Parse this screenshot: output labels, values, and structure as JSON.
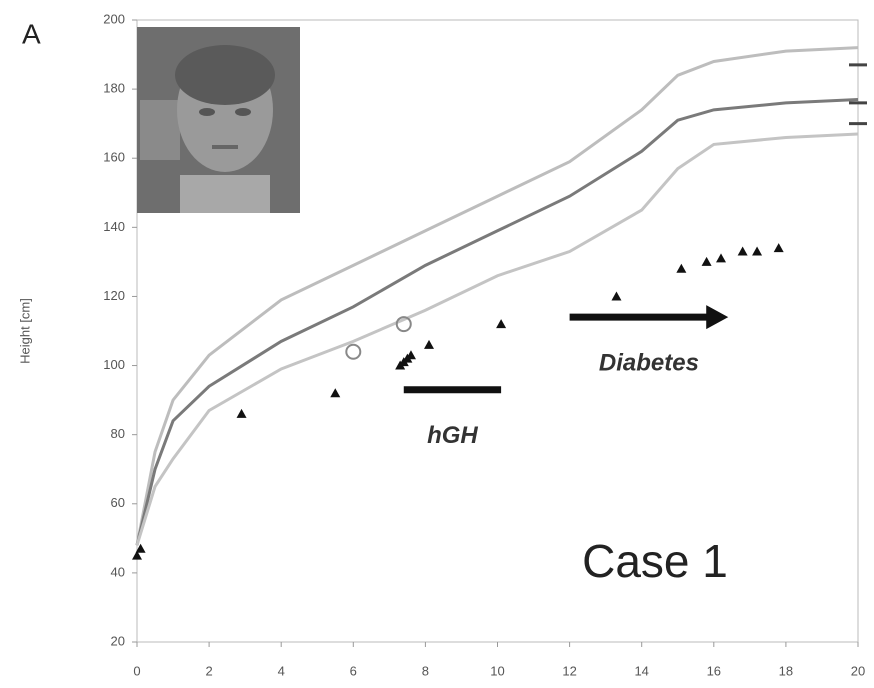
{
  "panel_label": "A",
  "chart_data": {
    "type": "line",
    "ylabel": "Height [cm]",
    "annotation": "Case 1",
    "xlim": [
      0,
      20
    ],
    "xticks": [
      0,
      2,
      4,
      6,
      8,
      10,
      12,
      14,
      16,
      18,
      20
    ],
    "ylim": [
      20,
      200
    ],
    "yticks": [
      20,
      40,
      60,
      80,
      100,
      120,
      140,
      160,
      180,
      200
    ],
    "series": [
      {
        "type": "line",
        "color": "#bdbdbd",
        "x": [
          0,
          0.5,
          1,
          2,
          4,
          6,
          8,
          10,
          12,
          14,
          15,
          16,
          18,
          20
        ],
        "values": [
          48,
          75,
          90,
          103,
          119,
          129,
          139,
          149,
          159,
          174,
          184,
          188,
          191,
          192
        ]
      },
      {
        "type": "line",
        "color": "#7a7a7a",
        "x": [
          0,
          0.5,
          1,
          2,
          4,
          6,
          8,
          10,
          12,
          14,
          15,
          16,
          18,
          20
        ],
        "values": [
          48,
          70,
          84,
          94,
          107,
          117,
          129,
          139,
          149,
          162,
          171,
          174,
          176,
          177
        ]
      },
      {
        "type": "line",
        "color": "#c4c4c4",
        "x": [
          0,
          0.5,
          1,
          2,
          4,
          6,
          8,
          10,
          12,
          14,
          15,
          16,
          18,
          20
        ],
        "values": [
          48,
          65,
          73,
          87,
          99,
          107,
          116,
          126,
          133,
          145,
          157,
          164,
          166,
          167
        ]
      },
      {
        "type": "scatter",
        "marker": "triangle",
        "color": "#111111",
        "x": [
          0,
          0.1,
          2.9,
          5.5,
          7.3,
          7.4,
          7.5,
          7.6,
          8.1,
          10.1,
          13.3,
          15.1,
          15.8,
          16.2,
          16.8,
          17.2,
          17.8
        ],
        "values": [
          45,
          47,
          86,
          92,
          100,
          101,
          102,
          103,
          106,
          112,
          120,
          128,
          130,
          131,
          133,
          133,
          134
        ]
      },
      {
        "type": "scatter",
        "marker": "circle",
        "color": "#888888",
        "x": [
          6,
          7.4
        ],
        "values": [
          104,
          112
        ]
      },
      {
        "type": "scatter",
        "marker": "dash",
        "color": "#444444",
        "x": [
          20,
          20,
          20
        ],
        "values": [
          187,
          176,
          170
        ]
      }
    ],
    "annotations": [
      {
        "text": "hGH",
        "x": [
          7.4,
          10.1
        ],
        "y": 93,
        "shape": "bar"
      },
      {
        "text": "Diabetes",
        "x": [
          12,
          16.4
        ],
        "y": 114,
        "shape": "arrow"
      }
    ]
  }
}
